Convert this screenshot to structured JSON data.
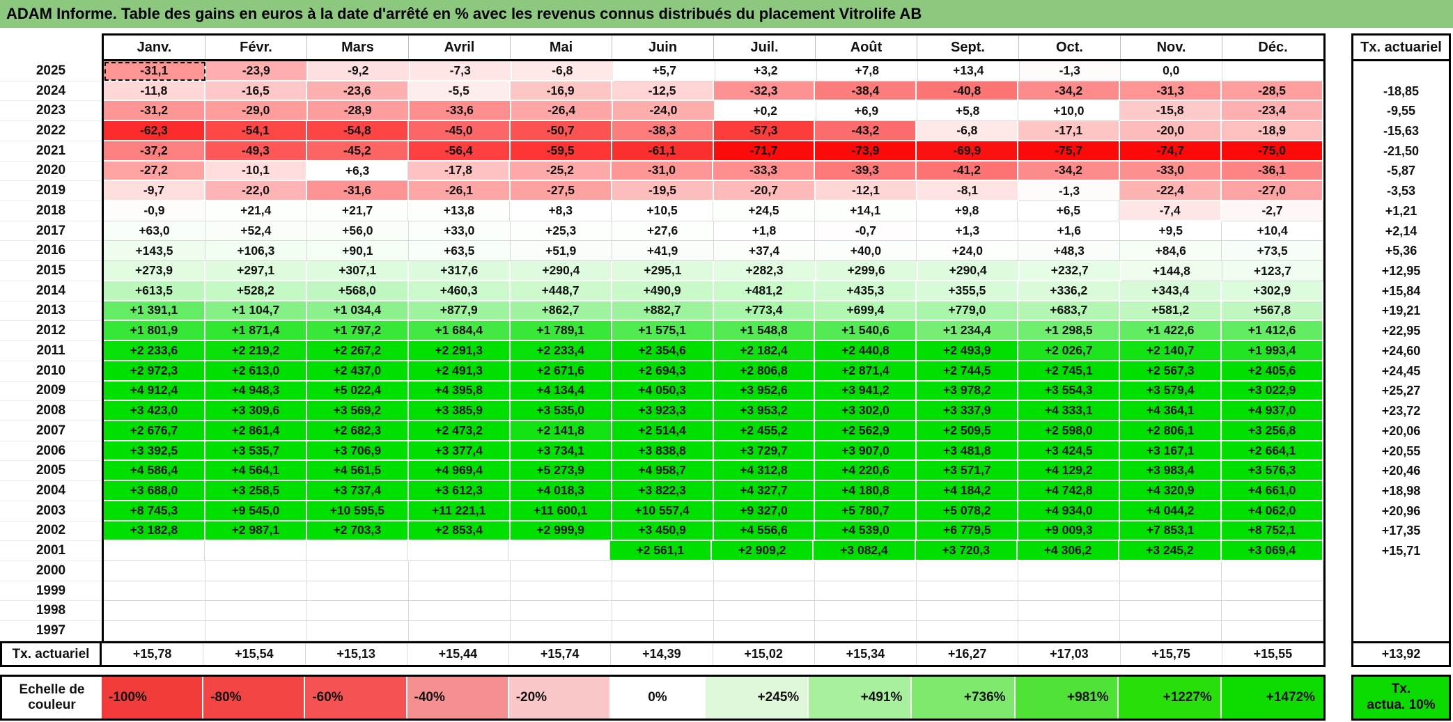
{
  "chart_data": {
    "type": "heatmap",
    "title": "ADAM Informe. Table des gains en euros à la date d'arrêté en % avec les revenus connus distribués du placement Vitrolife AB",
    "columns": [
      "Janv.",
      "Févr.",
      "Mars",
      "Avril",
      "Mai",
      "Juin",
      "Juil.",
      "Août",
      "Sept.",
      "Oct.",
      "Nov.",
      "Déc."
    ],
    "tx_column_header": "Tx. actuariel",
    "selection": {
      "year": "2025",
      "column": "Janv."
    },
    "rows": [
      {
        "year": "2025",
        "values": [
          "-31,1",
          "-23,9",
          "-9,2",
          "-7,3",
          "-6,8",
          "+5,7",
          "+3,2",
          "+7,8",
          "+13,4",
          "-1,3",
          "0,0",
          ""
        ],
        "tx": ""
      },
      {
        "year": "2024",
        "values": [
          "-11,8",
          "-16,5",
          "-23,6",
          "-5,5",
          "-16,9",
          "-12,5",
          "-32,3",
          "-38,4",
          "-40,8",
          "-34,2",
          "-31,3",
          "-28,5"
        ],
        "tx": "-18,85"
      },
      {
        "year": "2023",
        "values": [
          "-31,2",
          "-29,0",
          "-28,9",
          "-33,6",
          "-26,4",
          "-24,0",
          "+0,2",
          "+6,9",
          "+5,8",
          "+10,0",
          "-15,8",
          "-23,4"
        ],
        "tx": "-9,55"
      },
      {
        "year": "2022",
        "values": [
          "-62,3",
          "-54,1",
          "-54,8",
          "-45,0",
          "-50,7",
          "-38,3",
          "-57,3",
          "-43,2",
          "-6,8",
          "-17,1",
          "-20,0",
          "-18,9"
        ],
        "tx": "-15,63"
      },
      {
        "year": "2021",
        "values": [
          "-37,2",
          "-49,3",
          "-45,2",
          "-56,4",
          "-59,5",
          "-61,1",
          "-71,7",
          "-73,9",
          "-69,9",
          "-75,7",
          "-74,7",
          "-75,0"
        ],
        "tx": "-21,50"
      },
      {
        "year": "2020",
        "values": [
          "-27,2",
          "-10,1",
          "+6,3",
          "-17,8",
          "-25,2",
          "-31,0",
          "-33,3",
          "-39,3",
          "-41,2",
          "-34,2",
          "-33,0",
          "-36,1"
        ],
        "tx": "-5,87"
      },
      {
        "year": "2019",
        "values": [
          "-9,7",
          "-22,0",
          "-31,6",
          "-26,1",
          "-27,5",
          "-19,5",
          "-20,7",
          "-12,1",
          "-8,1",
          "-1,3",
          "-22,4",
          "-27,0"
        ],
        "tx": "-3,53"
      },
      {
        "year": "2018",
        "values": [
          "-0,9",
          "+21,4",
          "+21,7",
          "+13,8",
          "+8,3",
          "+10,5",
          "+24,5",
          "+14,1",
          "+9,8",
          "+6,5",
          "-7,4",
          "-2,7"
        ],
        "tx": "+1,21"
      },
      {
        "year": "2017",
        "values": [
          "+63,0",
          "+52,4",
          "+56,0",
          "+33,0",
          "+25,3",
          "+27,6",
          "+1,8",
          "-0,7",
          "+1,3",
          "+1,6",
          "+9,5",
          "+10,4"
        ],
        "tx": "+2,14"
      },
      {
        "year": "2016",
        "values": [
          "+143,5",
          "+106,3",
          "+90,1",
          "+63,5",
          "+51,9",
          "+41,9",
          "+37,4",
          "+40,0",
          "+24,0",
          "+48,3",
          "+84,6",
          "+73,5"
        ],
        "tx": "+5,36"
      },
      {
        "year": "2015",
        "values": [
          "+273,9",
          "+297,1",
          "+307,1",
          "+317,6",
          "+290,4",
          "+295,1",
          "+282,3",
          "+299,6",
          "+290,4",
          "+232,7",
          "+144,8",
          "+123,7"
        ],
        "tx": "+12,95"
      },
      {
        "year": "2014",
        "values": [
          "+613,5",
          "+528,2",
          "+568,0",
          "+460,3",
          "+448,7",
          "+490,9",
          "+481,2",
          "+435,3",
          "+355,5",
          "+336,2",
          "+343,4",
          "+302,9"
        ],
        "tx": "+15,84"
      },
      {
        "year": "2013",
        "values": [
          "+1 391,1",
          "+1 104,7",
          "+1 034,4",
          "+877,9",
          "+862,7",
          "+882,7",
          "+773,4",
          "+699,4",
          "+779,0",
          "+683,7",
          "+581,2",
          "+567,8"
        ],
        "tx": "+19,21"
      },
      {
        "year": "2012",
        "values": [
          "+1 801,9",
          "+1 871,4",
          "+1 797,2",
          "+1 684,4",
          "+1 789,1",
          "+1 575,1",
          "+1 548,8",
          "+1 540,6",
          "+1 234,4",
          "+1 298,5",
          "+1 422,6",
          "+1 412,6"
        ],
        "tx": "+22,95"
      },
      {
        "year": "2011",
        "values": [
          "+2 233,6",
          "+2 219,2",
          "+2 267,2",
          "+2 291,3",
          "+2 233,4",
          "+2 354,6",
          "+2 182,4",
          "+2 440,8",
          "+2 493,9",
          "+2 026,7",
          "+2 140,7",
          "+1 993,4"
        ],
        "tx": "+24,60"
      },
      {
        "year": "2010",
        "values": [
          "+2 972,3",
          "+2 613,0",
          "+2 437,0",
          "+2 491,3",
          "+2 671,6",
          "+2 694,3",
          "+2 806,8",
          "+2 871,4",
          "+2 744,5",
          "+2 745,1",
          "+2 567,3",
          "+2 405,6"
        ],
        "tx": "+24,45"
      },
      {
        "year": "2009",
        "values": [
          "+4 912,4",
          "+4 948,3",
          "+5 022,4",
          "+4 395,8",
          "+4 134,4",
          "+4 050,3",
          "+3 952,6",
          "+3 941,2",
          "+3 978,2",
          "+3 554,3",
          "+3 579,4",
          "+3 022,9"
        ],
        "tx": "+25,27"
      },
      {
        "year": "2008",
        "values": [
          "+3 423,0",
          "+3 309,6",
          "+3 569,2",
          "+3 385,9",
          "+3 535,0",
          "+3 923,3",
          "+3 953,2",
          "+3 302,0",
          "+3 337,9",
          "+4 333,1",
          "+4 364,1",
          "+4 937,0"
        ],
        "tx": "+23,72"
      },
      {
        "year": "2007",
        "values": [
          "+2 676,7",
          "+2 861,4",
          "+2 682,3",
          "+2 473,2",
          "+2 141,8",
          "+2 514,4",
          "+2 455,2",
          "+2 562,9",
          "+2 509,5",
          "+2 598,0",
          "+2 806,1",
          "+3 256,8"
        ],
        "tx": "+20,06"
      },
      {
        "year": "2006",
        "values": [
          "+3 392,5",
          "+3 535,7",
          "+3 706,9",
          "+3 377,4",
          "+3 734,1",
          "+3 838,8",
          "+3 729,7",
          "+3 907,0",
          "+3 481,8",
          "+3 424,5",
          "+3 167,1",
          "+2 664,1"
        ],
        "tx": "+20,55"
      },
      {
        "year": "2005",
        "values": [
          "+4 586,4",
          "+4 564,1",
          "+4 561,5",
          "+4 969,4",
          "+5 273,9",
          "+4 958,7",
          "+4 312,8",
          "+4 220,6",
          "+3 571,7",
          "+4 129,2",
          "+3 983,4",
          "+3 576,3"
        ],
        "tx": "+20,46"
      },
      {
        "year": "2004",
        "values": [
          "+3 688,0",
          "+3 258,5",
          "+3 737,4",
          "+3 612,3",
          "+4 018,3",
          "+3 822,3",
          "+4 327,7",
          "+4 180,8",
          "+4 184,2",
          "+4 742,8",
          "+4 320,9",
          "+4 661,0"
        ],
        "tx": "+18,98"
      },
      {
        "year": "2003",
        "values": [
          "+8 745,3",
          "+9 545,0",
          "+10 595,5",
          "+11 221,1",
          "+11 600,1",
          "+10 557,4",
          "+9 327,0",
          "+5 780,7",
          "+5 078,2",
          "+4 934,0",
          "+4 044,2",
          "+4 062,0"
        ],
        "tx": "+20,96"
      },
      {
        "year": "2002",
        "values": [
          "+3 182,8",
          "+2 987,1",
          "+2 703,3",
          "+2 853,4",
          "+2 999,9",
          "+3 450,9",
          "+4 556,6",
          "+4 539,0",
          "+6 779,5",
          "+9 009,3",
          "+7 853,1",
          "+8 752,1"
        ],
        "tx": "+17,35"
      },
      {
        "year": "2001",
        "values": [
          "",
          "",
          "",
          "",
          "",
          "+2 561,1",
          "+2 909,2",
          "+3 082,4",
          "+3 720,3",
          "+4 306,2",
          "+3 245,2",
          "+3 069,4"
        ],
        "tx": "+15,71"
      },
      {
        "year": "2000",
        "values": [
          "",
          "",
          "",
          "",
          "",
          "",
          "",
          "",
          "",
          "",
          "",
          ""
        ],
        "tx": ""
      },
      {
        "year": "1999",
        "values": [
          "",
          "",
          "",
          "",
          "",
          "",
          "",
          "",
          "",
          "",
          "",
          ""
        ],
        "tx": ""
      },
      {
        "year": "1998",
        "values": [
          "",
          "",
          "",
          "",
          "",
          "",
          "",
          "",
          "",
          "",
          "",
          ""
        ],
        "tx": ""
      },
      {
        "year": "1997",
        "values": [
          "",
          "",
          "",
          "",
          "",
          "",
          "",
          "",
          "",
          "",
          "",
          ""
        ],
        "tx": ""
      }
    ],
    "footer": {
      "label": "Tx. actuariel",
      "values": [
        "+15,78",
        "+15,54",
        "+15,13",
        "+15,44",
        "+15,74",
        "+14,39",
        "+15,02",
        "+15,34",
        "+16,27",
        "+17,03",
        "+15,75",
        "+15,55"
      ],
      "tx": "+13,92"
    },
    "legend": {
      "label_line1": "Echelle de",
      "label_line2": "couleur",
      "tx_line1": "Tx.",
      "tx_line2": "actua. 10%",
      "tx_color": "#0CDB00",
      "cells": [
        {
          "label": "-100%",
          "color": "#F23B3B",
          "align": "left"
        },
        {
          "label": "-80%",
          "color": "#F34444",
          "align": "left"
        },
        {
          "label": "-60%",
          "color": "#F55353",
          "align": "left"
        },
        {
          "label": "-40%",
          "color": "#F68F8F",
          "align": "left"
        },
        {
          "label": "-20%",
          "color": "#F9C7C7",
          "align": "left"
        },
        {
          "label": "0%",
          "color": "#FFFFFF",
          "align": "center"
        },
        {
          "label": "+245%",
          "color": "#DFF8DA",
          "align": "right"
        },
        {
          "label": "+491%",
          "color": "#A8EF9E",
          "align": "right"
        },
        {
          "label": "+736%",
          "color": "#7EE96C",
          "align": "right"
        },
        {
          "label": "+981%",
          "color": "#50E236",
          "align": "right"
        },
        {
          "label": "+1227%",
          "color": "#28DF0C",
          "align": "right"
        },
        {
          "label": "+1472%",
          "color": "#0EDB00",
          "align": "right"
        }
      ]
    },
    "colors": {
      "title_bar": "#8CC87E",
      "border": "#000000",
      "gridline": "#D9D9D9",
      "negative_full": "#FC0A0A",
      "positive_full": "#00E000"
    }
  }
}
